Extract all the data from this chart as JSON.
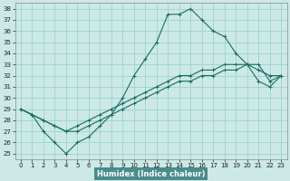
{
  "xlabel": "Humidex (Indice chaleur)",
  "xlim": [
    -0.5,
    23.5
  ],
  "ylim": [
    24.5,
    38.5
  ],
  "xticks": [
    0,
    1,
    2,
    3,
    4,
    5,
    6,
    7,
    8,
    9,
    10,
    11,
    12,
    13,
    14,
    15,
    16,
    17,
    18,
    19,
    20,
    21,
    22,
    23
  ],
  "yticks": [
    25,
    26,
    27,
    28,
    29,
    30,
    31,
    32,
    33,
    34,
    35,
    36,
    37,
    38
  ],
  "bg_color": "#cce9e6",
  "grid_color": "#99d4cf",
  "line_color": "#1a6b60",
  "label_bg": "#5b9fa0",
  "line1_x": [
    0,
    1,
    2,
    3,
    4,
    5,
    6,
    7,
    8,
    9,
    10,
    11,
    12,
    13,
    14,
    15,
    16,
    17,
    18,
    19,
    20,
    21,
    22,
    23
  ],
  "line1_y": [
    29,
    28.5,
    28,
    27.5,
    27,
    27.5,
    28,
    28.5,
    29,
    29.5,
    30,
    30.5,
    31,
    31.5,
    32,
    32,
    32.5,
    32.5,
    33,
    33,
    33,
    32.5,
    32,
    32
  ],
  "line2_x": [
    0,
    1,
    2,
    3,
    4,
    5,
    6,
    7,
    8,
    9,
    10,
    11,
    12,
    13,
    14,
    15,
    16,
    17,
    18,
    19,
    20,
    21,
    22,
    23
  ],
  "line2_y": [
    29,
    28.5,
    28,
    27.5,
    27,
    27,
    27.5,
    28,
    28.5,
    29,
    29.5,
    30,
    30.5,
    31,
    31.5,
    31.5,
    32,
    32,
    32.5,
    32.5,
    33,
    31.5,
    31,
    32
  ],
  "line3_x": [
    0,
    1,
    2,
    3,
    4,
    5,
    6,
    7,
    8,
    9,
    10,
    11,
    12,
    13,
    14,
    15,
    16,
    17,
    18,
    19,
    20,
    21,
    22,
    23
  ],
  "line3_y": [
    29,
    28.5,
    27,
    26,
    25,
    26,
    26.5,
    27.5,
    28.5,
    30,
    32,
    33.5,
    35,
    37.5,
    37.5,
    38,
    37,
    36,
    35.5,
    34,
    33,
    33,
    31.5,
    32
  ],
  "xlabel_fontsize": 6,
  "tick_fontsize": 5.0
}
